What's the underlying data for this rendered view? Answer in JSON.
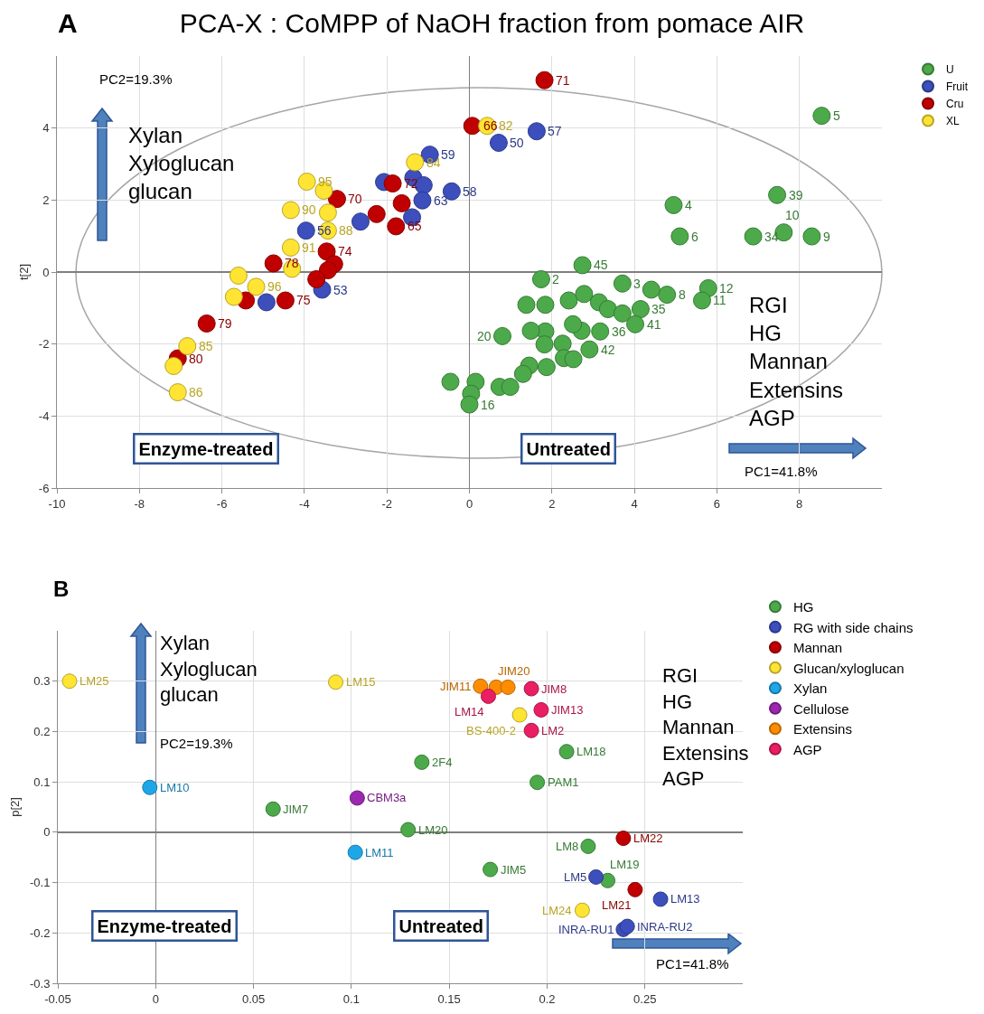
{
  "chart_data": [
    {
      "type": "scatter",
      "title": "PCA-X : CoMPP of NaOH fraction from pomace AIR",
      "ylabel": "t[2]",
      "xlim": [
        -10,
        10
      ],
      "xticks": [
        -10,
        -8,
        -6,
        -4,
        -2,
        0,
        2,
        4,
        6,
        8
      ],
      "ylim": [
        -6,
        6
      ],
      "yticks": [
        -6,
        -4,
        -2,
        0,
        2,
        4
      ],
      "grid": true,
      "legend": "top right",
      "marker": "circle",
      "series": [
        {
          "name": "U",
          "color": "#4caa4a",
          "x": [
            8.54,
            7.46,
            4.95,
            5.1,
            6.88,
            7.62,
            8.3,
            2.74,
            1.74,
            3.71,
            4.79,
            4.41,
            5.79,
            5.64,
            1.38,
            1.84,
            2.41,
            2.78,
            3.14,
            3.36,
            3.71,
            4.15,
            4.02,
            0.8,
            1.84,
            1.49,
            3.17,
            2.72,
            2.51,
            1.82,
            2.26,
            2.91,
            2.29,
            2.52,
            1.87,
            1.45,
            1.3,
            -0.46,
            0.15,
            0.73,
            0.04,
            0.0,
            0.99
          ],
          "values": [
            4.34,
            2.14,
            1.86,
            0.99,
            0.99,
            1.1,
            0.99,
            0.19,
            -0.2,
            -0.32,
            -0.63,
            -0.49,
            -0.45,
            -0.79,
            -0.91,
            -0.91,
            -0.79,
            -0.61,
            -0.84,
            -1.03,
            -1.15,
            -1.03,
            -1.45,
            -1.78,
            -1.65,
            -1.63,
            -1.65,
            -1.63,
            -1.45,
            -2.01,
            -1.99,
            -2.15,
            -2.39,
            -2.42,
            -2.64,
            -2.6,
            -2.83,
            -3.05,
            -3.05,
            -3.19,
            -3.38,
            -3.68,
            -3.19
          ]
        },
        {
          "name": "Fruit",
          "color": "#3c4fbd",
          "x": [
            1.63,
            0.71,
            -0.96,
            -0.43,
            -1.36,
            -2.07,
            -1.11,
            -1.14,
            -1.39,
            -2.64,
            -3.96,
            -3.57,
            -4.92
          ],
          "values": [
            3.91,
            3.59,
            3.26,
            2.24,
            2.62,
            2.5,
            2.41,
            1.99,
            1.52,
            1.4,
            1.15,
            -0.49,
            -0.84
          ]
        },
        {
          "name": "Cru",
          "color": "#c00000",
          "x": [
            1.82,
            0.07,
            -1.86,
            -1.64,
            -1.78,
            -2.25,
            -3.21,
            -3.46,
            -3.28,
            -4.75,
            -3.43,
            -3.71,
            -5.42,
            -4.46,
            -6.37,
            -7.07
          ],
          "values": [
            5.33,
            4.06,
            2.46,
            1.91,
            1.27,
            1.61,
            2.03,
            0.57,
            0.22,
            0.24,
            0.05,
            -0.2,
            -0.79,
            -0.79,
            -1.43,
            -2.4
          ]
        },
        {
          "name": "XL",
          "color": "#ffe433",
          "x": [
            0.43,
            -1.32,
            -3.94,
            -3.53,
            -4.33,
            -3.43,
            -3.43,
            -4.33,
            -4.3,
            -5.6,
            -5.17,
            -5.71,
            -6.84,
            -7.17,
            -7.07
          ],
          "values": [
            4.06,
            3.05,
            2.51,
            2.26,
            1.72,
            1.65,
            1.15,
            0.68,
            0.09,
            -0.1,
            -0.41,
            -0.69,
            -2.06,
            -2.61,
            -3.34
          ]
        }
      ],
      "annotations": [
        "A",
        "PC2=19.3%",
        "Xylan\nXyloglucan\nglucan",
        "RGI\nHG\nMannan\nExtensins\nAGP",
        "Enzyme-treated",
        "Untreated",
        "PC1=41.8%",
        {
          "text": "5",
          "x": 8.54,
          "y": 4.34
        },
        {
          "text": "39",
          "x": 7.46,
          "y": 2.14
        },
        {
          "text": "4",
          "x": 4.95,
          "y": 1.86
        },
        {
          "text": "6",
          "x": 5.1,
          "y": 0.99
        },
        {
          "text": "34",
          "x": 6.88,
          "y": 0.99
        },
        {
          "text": "10",
          "x": 7.62,
          "y": 1.1
        },
        {
          "text": "9",
          "x": 8.3,
          "y": 0.99
        },
        {
          "text": "45",
          "x": 2.74,
          "y": 0.19
        },
        {
          "text": "2",
          "x": 1.74,
          "y": -0.2
        },
        {
          "text": "3",
          "x": 3.71,
          "y": -0.32
        },
        {
          "text": "8",
          "x": 4.79,
          "y": -0.63
        },
        {
          "text": "12",
          "x": 5.79,
          "y": -0.45
        },
        {
          "text": "11",
          "x": 5.64,
          "y": -0.79
        },
        {
          "text": "35",
          "x": 4.15,
          "y": -1.03
        },
        {
          "text": "41",
          "x": 4.02,
          "y": -1.45
        },
        {
          "text": "20",
          "x": 0.8,
          "y": -1.78
        },
        {
          "text": "36",
          "x": 3.17,
          "y": -1.65
        },
        {
          "text": "42",
          "x": 2.91,
          "y": -2.15
        },
        {
          "text": "16",
          "x": 0.0,
          "y": -3.68
        },
        {
          "text": "57",
          "x": 1.63,
          "y": 3.91
        },
        {
          "text": "50",
          "x": 0.71,
          "y": 3.59
        },
        {
          "text": "59",
          "x": -0.96,
          "y": 3.26
        },
        {
          "text": "58",
          "x": -0.43,
          "y": 2.24
        },
        {
          "text": "63",
          "x": -1.14,
          "y": 1.99
        },
        {
          "text": "56",
          "x": -3.96,
          "y": 1.15
        },
        {
          "text": "53",
          "x": -3.57,
          "y": -0.49
        },
        {
          "text": "71",
          "x": 1.82,
          "y": 5.33
        },
        {
          "text": "66",
          "x": 0.07,
          "y": 4.06
        },
        {
          "text": "72",
          "x": -1.86,
          "y": 2.46
        },
        {
          "text": "65",
          "x": -1.78,
          "y": 1.27
        },
        {
          "text": "70",
          "x": -3.21,
          "y": 2.03
        },
        {
          "text": "74",
          "x": -3.46,
          "y": 0.57
        },
        {
          "text": "78",
          "x": -4.75,
          "y": 0.24
        },
        {
          "text": "75",
          "x": -4.46,
          "y": -0.79
        },
        {
          "text": "79",
          "x": -6.37,
          "y": -1.43
        },
        {
          "text": "80",
          "x": -7.07,
          "y": -2.4
        },
        {
          "text": "82",
          "x": 0.43,
          "y": 4.06
        },
        {
          "text": "84",
          "x": -1.32,
          "y": 3.05
        },
        {
          "text": "95",
          "x": -3.94,
          "y": 2.51
        },
        {
          "text": "90",
          "x": -4.33,
          "y": 1.72
        },
        {
          "text": "88",
          "x": -3.43,
          "y": 1.15
        },
        {
          "text": "91",
          "x": -4.33,
          "y": 0.68
        },
        {
          "text": "96",
          "x": -5.17,
          "y": -0.41
        },
        {
          "text": "85",
          "x": -6.84,
          "y": -2.06
        },
        {
          "text": "86",
          "x": -7.07,
          "y": -3.34
        }
      ]
    },
    {
      "type": "scatter",
      "ylabel": "p[2]",
      "xlim": [
        -0.05,
        0.3
      ],
      "xticks": [
        -0.05,
        0,
        0.05,
        0.1,
        0.15,
        0.2,
        0.25
      ],
      "ylim": [
        -0.3,
        0.4
      ],
      "yticks": [
        -0.3,
        -0.2,
        -0.1,
        0,
        0.1,
        0.2,
        0.3
      ],
      "grid": true,
      "legend": "top right",
      "marker": "circle",
      "series": [
        {
          "name": "HG",
          "color": "#4caa4a",
          "x": [
            0.06,
            0.136,
            0.129,
            0.171,
            0.21,
            0.195,
            0.221,
            0.231
          ],
          "values": [
            0.046,
            0.139,
            0.005,
            -0.074,
            0.16,
            0.099,
            -0.028,
            -0.096
          ]
        },
        {
          "name": "RG with side chains",
          "color": "#3c4fbd",
          "x": [
            0.225,
            0.258,
            0.239,
            0.241
          ],
          "values": [
            -0.089,
            -0.133,
            -0.193,
            -0.187
          ]
        },
        {
          "name": "Mannan",
          "color": "#c00000",
          "x": [
            0.239,
            0.245
          ],
          "values": [
            -0.012,
            -0.114
          ]
        },
        {
          "name": "Glucan/xyloglucan",
          "color": "#ffe433",
          "x": [
            -0.044,
            0.092,
            0.186,
            0.218
          ],
          "values": [
            0.3,
            0.298,
            0.233,
            -0.155
          ]
        },
        {
          "name": "Xylan",
          "color": "#1ea7e8",
          "x": [
            -0.003,
            0.102
          ],
          "values": [
            0.089,
            -0.04
          ]
        },
        {
          "name": "Cellulose",
          "color": "#9c27b0",
          "x": [
            0.103
          ],
          "values": [
            0.068
          ]
        },
        {
          "name": "Extensins",
          "color": "#ff8c00",
          "x": [
            0.166,
            0.174,
            0.18
          ],
          "values": [
            0.29,
            0.288,
            0.288
          ]
        },
        {
          "name": "AGP",
          "color": "#e91e63",
          "x": [
            0.192,
            0.197,
            0.192,
            0.17
          ],
          "values": [
            0.285,
            0.243,
            0.202,
            0.27
          ]
        }
      ],
      "annotations": [
        "B",
        "Xylan\nXyloglucan\nglucan",
        "PC2=19.3%",
        "RGI\nHG\nMannan\nExtensins\nAGP",
        "Enzyme-treated",
        "Untreated",
        "PC1=41.8%",
        {
          "text": "JIM7",
          "x": 0.06,
          "y": 0.046
        },
        {
          "text": "2F4",
          "x": 0.136,
          "y": 0.139
        },
        {
          "text": "LM20",
          "x": 0.129,
          "y": 0.005
        },
        {
          "text": "JIM5",
          "x": 0.171,
          "y": -0.074
        },
        {
          "text": "LM18",
          "x": 0.21,
          "y": 0.16
        },
        {
          "text": "PAM1",
          "x": 0.195,
          "y": 0.099
        },
        {
          "text": "LM8",
          "x": 0.221,
          "y": -0.028
        },
        {
          "text": "LM19",
          "x": 0.231,
          "y": -0.096
        },
        {
          "text": "LM5",
          "x": 0.225,
          "y": -0.089
        },
        {
          "text": "LM13",
          "x": 0.258,
          "y": -0.133
        },
        {
          "text": "INRA-RU1",
          "x": 0.239,
          "y": -0.193
        },
        {
          "text": "INRA-RU2",
          "x": 0.241,
          "y": -0.187
        },
        {
          "text": "LM22",
          "x": 0.239,
          "y": -0.012
        },
        {
          "text": "LM21",
          "x": 0.245,
          "y": -0.114
        },
        {
          "text": "LM25",
          "x": -0.044,
          "y": 0.3
        },
        {
          "text": "LM15",
          "x": 0.092,
          "y": 0.298
        },
        {
          "text": "BS-400-2",
          "x": 0.186,
          "y": 0.233
        },
        {
          "text": "LM24",
          "x": 0.218,
          "y": -0.155
        },
        {
          "text": "LM10",
          "x": -0.003,
          "y": 0.089
        },
        {
          "text": "LM11",
          "x": 0.102,
          "y": -0.04
        },
        {
          "text": "CBM3a",
          "x": 0.103,
          "y": 0.068
        },
        {
          "text": "JIM11",
          "x": 0.166,
          "y": 0.29
        },
        {
          "text": "JIM20",
          "x": 0.174,
          "y": 0.288
        },
        {
          "text": "JIM8",
          "x": 0.192,
          "y": 0.285
        },
        {
          "text": "JIM13",
          "x": 0.197,
          "y": 0.243
        },
        {
          "text": "LM2",
          "x": 0.192,
          "y": 0.202
        },
        {
          "text": "LM14",
          "x": 0.17,
          "y": 0.27
        }
      ]
    }
  ]
}
